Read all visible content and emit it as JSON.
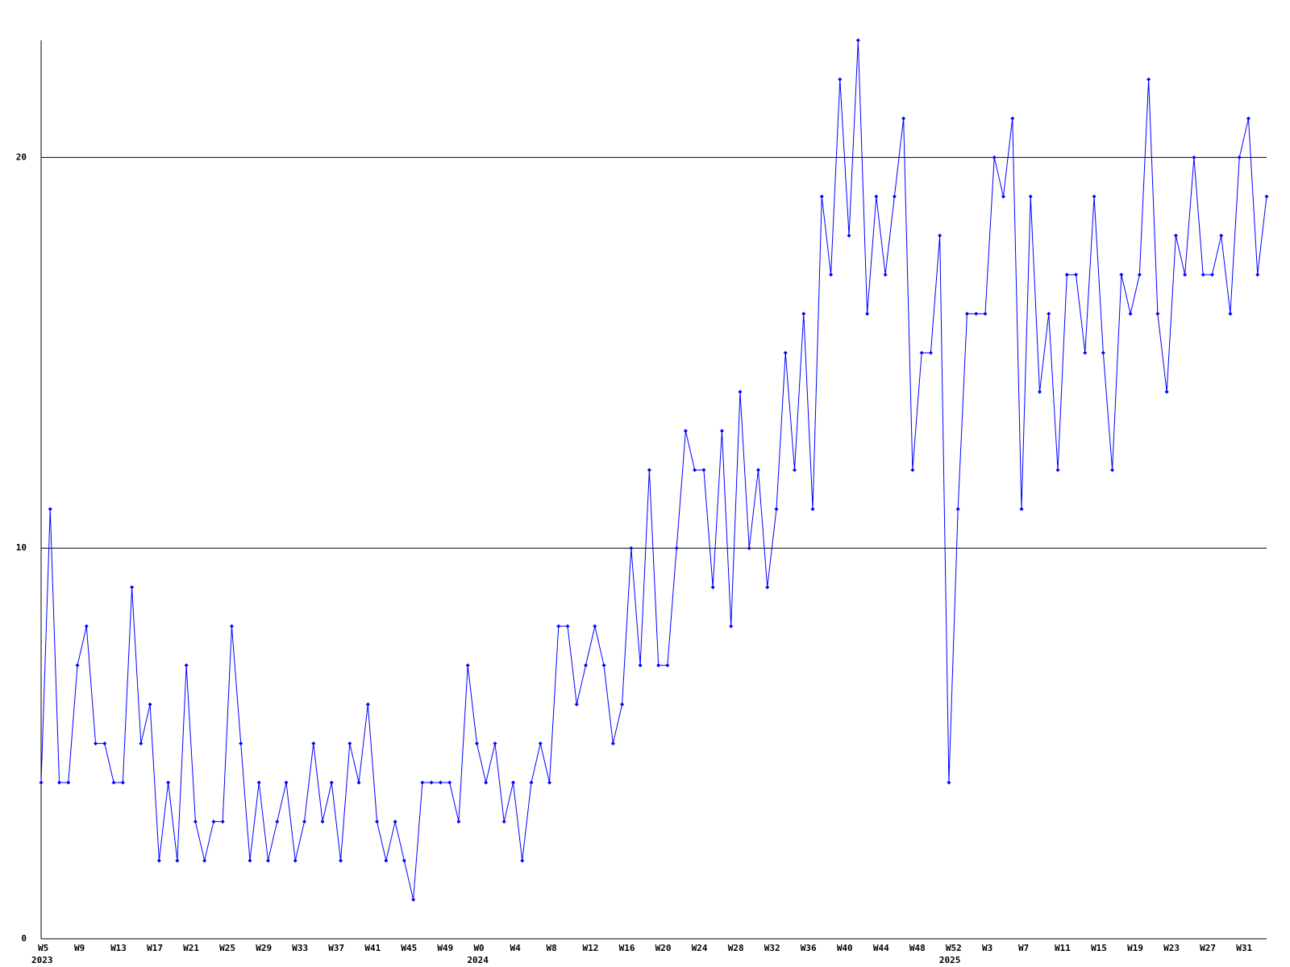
{
  "chart_data": {
    "type": "line",
    "categories": [
      "W5",
      null,
      null,
      null,
      "W9",
      null,
      null,
      null,
      "W13",
      null,
      null,
      null,
      "W17",
      null,
      null,
      null,
      "W21",
      null,
      null,
      null,
      "W25",
      null,
      null,
      null,
      "W29",
      null,
      null,
      null,
      "W33",
      null,
      null,
      null,
      "W37",
      null,
      null,
      null,
      "W41",
      null,
      null,
      null,
      "W45",
      null,
      null,
      null,
      "W49",
      null,
      null,
      null,
      "W0",
      null,
      null,
      null,
      "W4",
      null,
      null,
      null,
      "W8",
      null,
      null,
      null,
      "W12",
      null,
      null,
      null,
      "W16",
      null,
      null,
      null,
      "W20",
      null,
      null,
      null,
      "W24",
      null,
      null,
      null,
      "W28",
      null,
      null,
      null,
      "W32",
      null,
      null,
      null,
      "W36",
      null,
      null,
      null,
      "W40",
      null,
      null,
      null,
      "W44",
      null,
      null,
      null,
      "W48",
      null,
      null,
      null,
      "W52",
      null,
      null,
      null,
      "W3",
      null,
      null,
      null,
      "W7",
      null,
      null,
      null,
      "W11",
      null,
      null,
      null,
      "W15",
      null,
      null,
      null,
      "W19",
      null,
      null,
      null,
      "W23",
      null,
      null,
      null,
      "W27",
      null,
      null,
      null,
      "W31",
      null,
      null,
      null
    ],
    "category_years": [
      "2023",
      null,
      null,
      null,
      null,
      null,
      null,
      null,
      null,
      null,
      null,
      null,
      null,
      null,
      null,
      null,
      null,
      null,
      null,
      null,
      null,
      null,
      null,
      null,
      null,
      null,
      null,
      null,
      null,
      null,
      null,
      null,
      null,
      null,
      null,
      null,
      null,
      null,
      null,
      null,
      null,
      null,
      null,
      null,
      null,
      null,
      null,
      null,
      "2024",
      null,
      null,
      null,
      null,
      null,
      null,
      null,
      null,
      null,
      null,
      null,
      null,
      null,
      null,
      null,
      null,
      null,
      null,
      null,
      null,
      null,
      null,
      null,
      null,
      null,
      null,
      null,
      null,
      null,
      null,
      null,
      null,
      null,
      null,
      null,
      null,
      null,
      null,
      null,
      null,
      null,
      null,
      null,
      null,
      null,
      null,
      null,
      null,
      null,
      null,
      null,
      "2025",
      null,
      null,
      null,
      null,
      null,
      null,
      null,
      null,
      null,
      null,
      null,
      null,
      null,
      null,
      null,
      null,
      null,
      null,
      null,
      null,
      null,
      null,
      null,
      null,
      null,
      null,
      null,
      null,
      null,
      null,
      null,
      null,
      null,
      null,
      null
    ],
    "series": [
      {
        "color": "#0000ff",
        "values": [
          4,
          11,
          4,
          4,
          7,
          8,
          5,
          5,
          4,
          4,
          9,
          5,
          6,
          2,
          4,
          2,
          7,
          3,
          2,
          3,
          3,
          8,
          5,
          2,
          4,
          2,
          3,
          4,
          2,
          3,
          5,
          3,
          4,
          2,
          5,
          4,
          6,
          3,
          2,
          3,
          2,
          1,
          4,
          4,
          4,
          4,
          3,
          7,
          5,
          4,
          5,
          3,
          4,
          2,
          4,
          5,
          4,
          8,
          8,
          6,
          7,
          8,
          7,
          5,
          6,
          10,
          7,
          12,
          7,
          7,
          10,
          13,
          12,
          12,
          9,
          13,
          8,
          14,
          10,
          12,
          9,
          11,
          15,
          12,
          16,
          11,
          19,
          17,
          22,
          18,
          23,
          16,
          19,
          17,
          19,
          21,
          12,
          15,
          15,
          18,
          4,
          11,
          16,
          16,
          16,
          20,
          19,
          21,
          11,
          19,
          14,
          16,
          12,
          17,
          17,
          15,
          19,
          15,
          12,
          17,
          16,
          17,
          22,
          16,
          14,
          18,
          17,
          20,
          17,
          17,
          18,
          16,
          20,
          21,
          17,
          19
        ]
      }
    ],
    "ylim": [
      0,
      23
    ],
    "yticks": [
      0,
      10,
      20
    ],
    "grid": true
  }
}
